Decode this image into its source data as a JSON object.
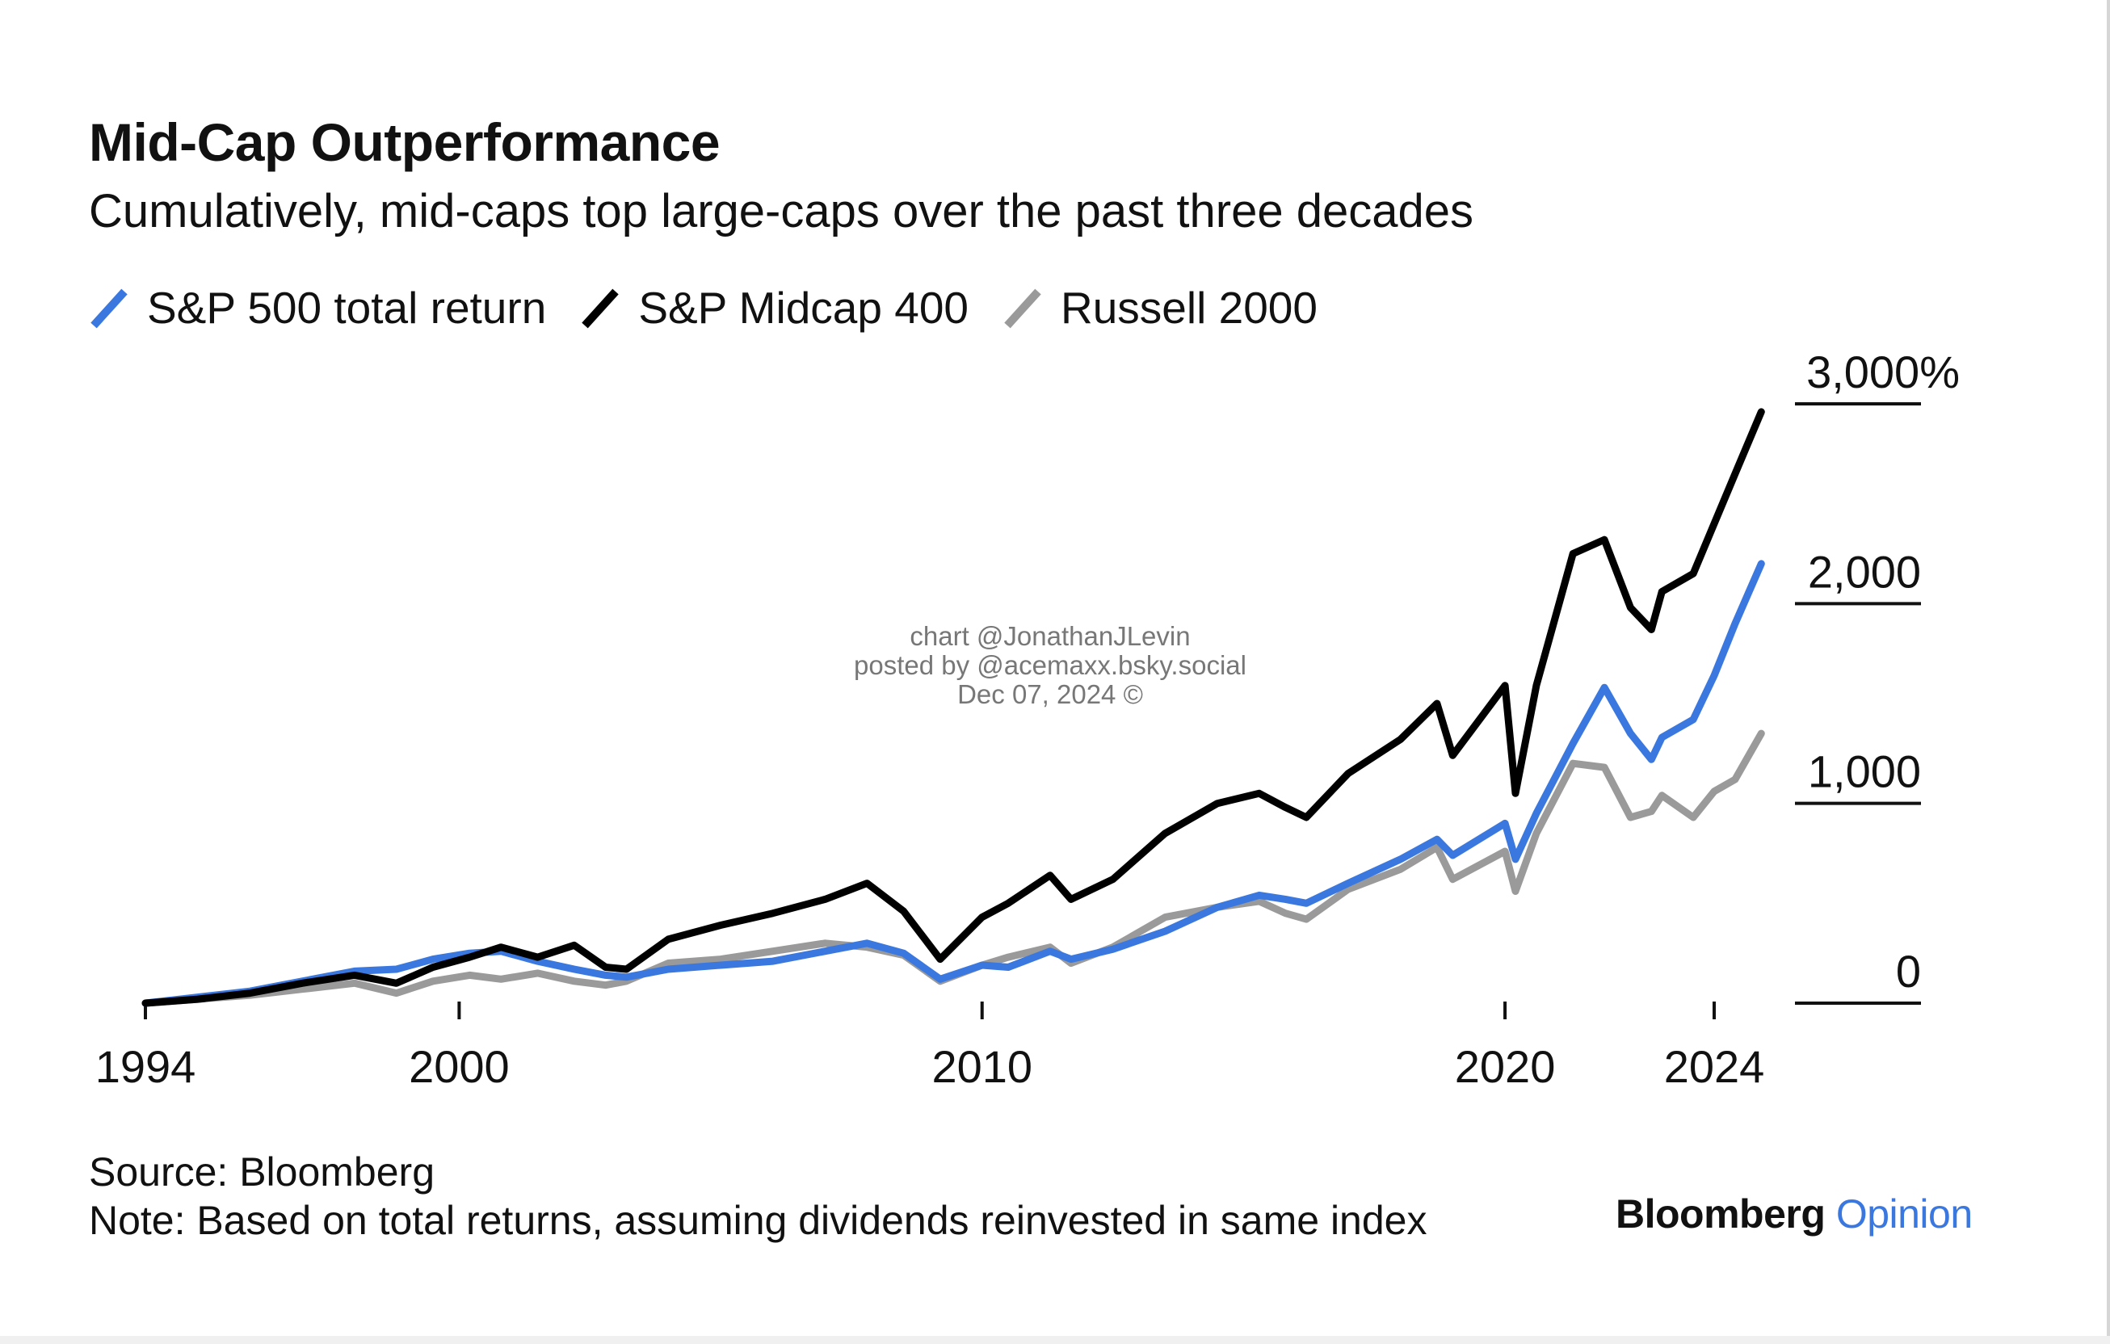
{
  "chart_data": {
    "type": "line",
    "title": "Mid-Cap Outperformance",
    "subtitle": "Cumulatively, mid-caps top large-caps over the past three decades",
    "xlabel": "",
    "ylabel": "",
    "x_ticks": [
      "1994",
      "2000",
      "2010",
      "2020",
      "2024"
    ],
    "y_ticks": [
      "3,000%",
      "2,000",
      "1,000",
      "0"
    ],
    "y_tick_values": [
      3000,
      2000,
      1000,
      0
    ],
    "xlim": [
      1994,
      2024
    ],
    "ylim": [
      0,
      3000
    ],
    "grid": false,
    "legend_position": "top-left",
    "series": [
      {
        "name": "S&P 500 total return",
        "color": "#3a78e0",
        "points": [
          [
            1994.0,
            0
          ],
          [
            1995.0,
            30
          ],
          [
            1996.0,
            60
          ],
          [
            1997.0,
            110
          ],
          [
            1998.0,
            160
          ],
          [
            1998.8,
            170
          ],
          [
            1999.5,
            220
          ],
          [
            2000.2,
            250
          ],
          [
            2000.8,
            260
          ],
          [
            2001.5,
            210
          ],
          [
            2002.2,
            170
          ],
          [
            2002.8,
            140
          ],
          [
            2003.2,
            130
          ],
          [
            2004.0,
            170
          ],
          [
            2005.0,
            190
          ],
          [
            2006.0,
            210
          ],
          [
            2007.0,
            260
          ],
          [
            2007.8,
            300
          ],
          [
            2008.5,
            250
          ],
          [
            2009.2,
            120
          ],
          [
            2010.0,
            190
          ],
          [
            2010.5,
            180
          ],
          [
            2011.3,
            260
          ],
          [
            2011.7,
            220
          ],
          [
            2012.5,
            270
          ],
          [
            2013.5,
            360
          ],
          [
            2014.5,
            480
          ],
          [
            2015.3,
            540
          ],
          [
            2015.8,
            520
          ],
          [
            2016.2,
            500
          ],
          [
            2017.0,
            600
          ],
          [
            2018.0,
            720
          ],
          [
            2018.7,
            820
          ],
          [
            2019.0,
            740
          ],
          [
            2020.0,
            900
          ],
          [
            2020.2,
            720
          ],
          [
            2020.6,
            950
          ],
          [
            2021.3,
            1300
          ],
          [
            2021.9,
            1580
          ],
          [
            2022.4,
            1350
          ],
          [
            2022.8,
            1220
          ],
          [
            2023.0,
            1330
          ],
          [
            2023.6,
            1420
          ],
          [
            2024.0,
            1640
          ],
          [
            2024.4,
            1900
          ],
          [
            2024.9,
            2200
          ]
        ]
      },
      {
        "name": "S&P Midcap 400",
        "color": "#000000",
        "points": [
          [
            1994.0,
            0
          ],
          [
            1995.0,
            20
          ],
          [
            1996.0,
            50
          ],
          [
            1997.0,
            100
          ],
          [
            1998.0,
            140
          ],
          [
            1998.8,
            100
          ],
          [
            1999.5,
            180
          ],
          [
            2000.2,
            230
          ],
          [
            2000.8,
            280
          ],
          [
            2001.5,
            230
          ],
          [
            2002.2,
            290
          ],
          [
            2002.8,
            180
          ],
          [
            2003.2,
            170
          ],
          [
            2004.0,
            320
          ],
          [
            2005.0,
            390
          ],
          [
            2006.0,
            450
          ],
          [
            2007.0,
            520
          ],
          [
            2007.8,
            600
          ],
          [
            2008.5,
            460
          ],
          [
            2009.2,
            220
          ],
          [
            2010.0,
            430
          ],
          [
            2010.5,
            500
          ],
          [
            2011.3,
            640
          ],
          [
            2011.7,
            520
          ],
          [
            2012.5,
            620
          ],
          [
            2013.5,
            850
          ],
          [
            2014.5,
            1000
          ],
          [
            2015.3,
            1050
          ],
          [
            2015.8,
            980
          ],
          [
            2016.2,
            930
          ],
          [
            2017.0,
            1150
          ],
          [
            2018.0,
            1320
          ],
          [
            2018.7,
            1500
          ],
          [
            2019.0,
            1240
          ],
          [
            2020.0,
            1590
          ],
          [
            2020.2,
            1050
          ],
          [
            2020.6,
            1590
          ],
          [
            2021.3,
            2250
          ],
          [
            2021.9,
            2320
          ],
          [
            2022.4,
            1980
          ],
          [
            2022.8,
            1870
          ],
          [
            2023.0,
            2060
          ],
          [
            2023.6,
            2150
          ],
          [
            2024.0,
            2400
          ],
          [
            2024.4,
            2650
          ],
          [
            2024.9,
            2960
          ]
        ]
      },
      {
        "name": "Russell 2000",
        "color": "#9a9a9a",
        "points": [
          [
            1994.0,
            0
          ],
          [
            1995.0,
            20
          ],
          [
            1996.0,
            40
          ],
          [
            1997.0,
            70
          ],
          [
            1998.0,
            100
          ],
          [
            1998.8,
            50
          ],
          [
            1999.5,
            110
          ],
          [
            2000.2,
            140
          ],
          [
            2000.8,
            120
          ],
          [
            2001.5,
            150
          ],
          [
            2002.2,
            110
          ],
          [
            2002.8,
            90
          ],
          [
            2003.2,
            110
          ],
          [
            2004.0,
            200
          ],
          [
            2005.0,
            220
          ],
          [
            2006.0,
            260
          ],
          [
            2007.0,
            300
          ],
          [
            2007.8,
            280
          ],
          [
            2008.5,
            240
          ],
          [
            2009.2,
            110
          ],
          [
            2010.0,
            190
          ],
          [
            2010.5,
            230
          ],
          [
            2011.3,
            280
          ],
          [
            2011.7,
            200
          ],
          [
            2012.5,
            280
          ],
          [
            2013.5,
            430
          ],
          [
            2014.5,
            480
          ],
          [
            2015.3,
            510
          ],
          [
            2015.8,
            450
          ],
          [
            2016.2,
            420
          ],
          [
            2017.0,
            570
          ],
          [
            2018.0,
            670
          ],
          [
            2018.7,
            780
          ],
          [
            2019.0,
            620
          ],
          [
            2020.0,
            760
          ],
          [
            2020.2,
            560
          ],
          [
            2020.6,
            850
          ],
          [
            2021.3,
            1200
          ],
          [
            2021.9,
            1180
          ],
          [
            2022.4,
            930
          ],
          [
            2022.8,
            960
          ],
          [
            2023.0,
            1040
          ],
          [
            2023.6,
            930
          ],
          [
            2024.0,
            1060
          ],
          [
            2024.4,
            1120
          ],
          [
            2024.9,
            1350
          ]
        ]
      }
    ]
  },
  "source_text": "Source: Bloomberg",
  "note_text": "Note: Based on total returns, assuming dividends reinvested in same index",
  "brand": {
    "primary": "Bloomberg",
    "secondary": "Opinion"
  },
  "watermark": {
    "line1": "chart @JonathanJLevin",
    "line2": "posted by @acemaxx.bsky.social",
    "line3": "Dec 07, 2024 ©"
  }
}
